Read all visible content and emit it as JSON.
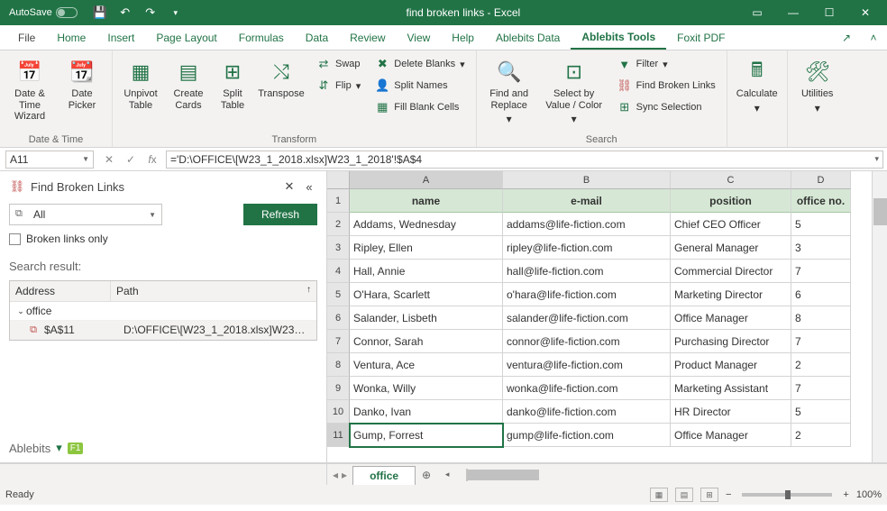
{
  "titlebar": {
    "autosave": "AutoSave",
    "title": "find broken links  -  Excel"
  },
  "ribbon_tabs": {
    "file": "File",
    "home": "Home",
    "insert": "Insert",
    "page_layout": "Page Layout",
    "formulas": "Formulas",
    "data": "Data",
    "review": "Review",
    "view": "View",
    "help": "Help",
    "ablebits_data": "Ablebits Data",
    "ablebits_tools": "Ablebits Tools",
    "foxit": "Foxit PDF"
  },
  "ribbon": {
    "datetime": {
      "date_time_wizard": "Date & Time Wizard",
      "date_picker": "Date Picker",
      "group": "Date & Time"
    },
    "transform": {
      "unpivot": "Unpivot Table",
      "create_cards": "Create Cards",
      "split_table": "Split Table",
      "transpose": "Transpose",
      "swap": "Swap",
      "flip": "Flip",
      "delete_blanks": "Delete Blanks",
      "split_names": "Split Names",
      "fill_blank": "Fill Blank Cells",
      "group": "Transform"
    },
    "search": {
      "find_replace": "Find and Replace",
      "select_by": "Select by Value / Color",
      "filter": "Filter",
      "find_broken": "Find Broken Links",
      "sync": "Sync Selection",
      "group": "Search"
    },
    "calculate": "Calculate",
    "utilities": "Utilities"
  },
  "formula_bar": {
    "name": "A11",
    "formula": "='D:\\OFFICE\\[W23_1_2018.xlsx]W23_1_2018'!$A$4"
  },
  "taskpane": {
    "title": "Find Broken Links",
    "dropdown": "All",
    "refresh": "Refresh",
    "broken_only": "Broken links only",
    "search_result": "Search result:",
    "col_address": "Address",
    "col_path": "Path",
    "group_office": "office",
    "row_addr": "$A$11",
    "row_path": "D:\\OFFICE\\[W23_1_2018.xlsx]W23_1_2...",
    "footer": "Ablebits"
  },
  "grid": {
    "headers": {
      "a": "name",
      "b": "e-mail",
      "c": "position",
      "d": "office no."
    },
    "rows": [
      {
        "a": "Addams, Wednesday",
        "b": "addams@life-fiction.com",
        "c": "Chief CEO Officer",
        "d": "5"
      },
      {
        "a": "Ripley, Ellen",
        "b": "ripley@life-fiction.com",
        "c": "General Manager",
        "d": "3"
      },
      {
        "a": "Hall, Annie",
        "b": "hall@life-fiction.com",
        "c": "Commercial Director",
        "d": "7"
      },
      {
        "a": "O'Hara, Scarlett",
        "b": "o'hara@life-fiction.com",
        "c": "Marketing Director",
        "d": "6"
      },
      {
        "a": "Salander, Lisbeth",
        "b": "salander@life-fiction.com",
        "c": "Office Manager",
        "d": "8"
      },
      {
        "a": "Connor, Sarah",
        "b": "connor@life-fiction.com",
        "c": "Purchasing Director",
        "d": "7"
      },
      {
        "a": "Ventura, Ace",
        "b": "ventura@life-fiction.com",
        "c": "Product Manager",
        "d": "2"
      },
      {
        "a": "Wonka, Willy",
        "b": "wonka@life-fiction.com",
        "c": "Marketing Assistant",
        "d": "7"
      },
      {
        "a": "Danko, Ivan",
        "b": "danko@life-fiction.com",
        "c": "HR Director",
        "d": "5"
      },
      {
        "a": "Gump, Forrest",
        "b": "gump@life-fiction.com",
        "c": "Office Manager",
        "d": "2"
      }
    ],
    "col_letters": {
      "a": "A",
      "b": "B",
      "c": "C",
      "d": "D"
    }
  },
  "sheet_tab": "office",
  "status": {
    "ready": "Ready",
    "zoom": "100%"
  },
  "f1": "F1",
  "colors": {
    "accent": "#217346",
    "pane_header": "#d6e8d5",
    "broken_icon": "#c0504d"
  }
}
